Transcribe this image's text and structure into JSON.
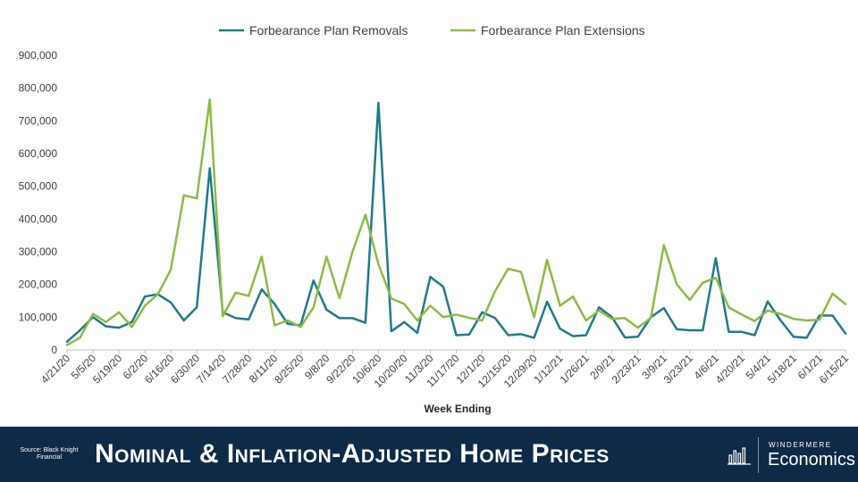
{
  "chart_data": {
    "type": "line",
    "title": "",
    "xlabel": "Week Ending",
    "ylabel": "",
    "ylim": [
      0,
      900000
    ],
    "yticks": [
      0,
      100000,
      200000,
      300000,
      400000,
      500000,
      600000,
      700000,
      800000,
      900000
    ],
    "ytick_labels": [
      "0",
      "100,000",
      "200,000",
      "300,000",
      "400,000",
      "500,000",
      "600,000",
      "700,000",
      "800,000",
      "900,000"
    ],
    "legend_position": "top-center",
    "grid": false,
    "x": [
      "4/21/20",
      "4/28/20",
      "5/5/20",
      "5/12/20",
      "5/19/20",
      "5/26/20",
      "6/2/20",
      "6/9/20",
      "6/16/20",
      "6/23/20",
      "6/30/20",
      "7/7/20",
      "7/14/20",
      "7/21/20",
      "7/28/20",
      "8/4/20",
      "8/11/20",
      "8/18/20",
      "8/25/20",
      "9/1/20",
      "9/8/20",
      "9/15/20",
      "9/22/20",
      "9/29/20",
      "10/6/20",
      "10/13/20",
      "10/20/20",
      "10/27/20",
      "11/3/20",
      "11/10/20",
      "11/17/20",
      "11/24/20",
      "12/1/20",
      "12/8/20",
      "12/15/20",
      "12/22/20",
      "12/29/20",
      "1/5/21",
      "1/12/21",
      "1/19/21",
      "1/26/21",
      "2/2/21",
      "2/9/21",
      "2/16/21",
      "2/23/21",
      "3/2/21",
      "3/9/21",
      "3/16/21",
      "3/23/21",
      "3/30/21",
      "4/6/21",
      "4/13/21",
      "4/20/21",
      "4/27/21",
      "5/4/21",
      "5/11/21",
      "5/18/21",
      "5/25/21",
      "6/1/21",
      "6/8/21",
      "6/15/21"
    ],
    "xtick_labels": [
      "4/21/20",
      "5/5/20",
      "5/19/20",
      "6/2/20",
      "6/16/20",
      "6/30/20",
      "7/14/20",
      "7/28/20",
      "8/11/20",
      "8/25/20",
      "9/8/20",
      "9/22/20",
      "10/6/20",
      "10/20/20",
      "11/3/20",
      "11/17/20",
      "12/1/20",
      "12/15/20",
      "12/29/20",
      "1/12/21",
      "1/26/21",
      "2/9/21",
      "2/23/21",
      "3/9/21",
      "3/23/21",
      "4/6/21",
      "4/20/21",
      "5/4/21",
      "5/18/21",
      "6/1/21",
      "6/15/21"
    ],
    "series": [
      {
        "name": "Forbearance Plan Removals",
        "color": "#1f7a8c",
        "values": [
          25000,
          60000,
          100000,
          72000,
          68000,
          85000,
          163000,
          170000,
          145000,
          90000,
          130000,
          555000,
          115000,
          97000,
          93000,
          185000,
          140000,
          80000,
          75000,
          212000,
          123000,
          97000,
          97000,
          83000,
          755000,
          57000,
          85000,
          52000,
          223000,
          193000,
          45000,
          47000,
          115000,
          97000,
          45000,
          48000,
          37000,
          147000,
          65000,
          42000,
          45000,
          130000,
          100000,
          38000,
          40000,
          100000,
          128000,
          63000,
          60000,
          60000,
          280000,
          55000,
          55000,
          45000,
          148000,
          90000,
          40000,
          37000,
          105000,
          105000,
          50000
        ]
      },
      {
        "name": "Forbearance Plan Extensions",
        "color": "#8dbb43",
        "values": [
          15000,
          37000,
          110000,
          85000,
          115000,
          70000,
          135000,
          170000,
          245000,
          472000,
          463000,
          765000,
          103000,
          175000,
          165000,
          285000,
          75000,
          90000,
          70000,
          130000,
          285000,
          158000,
          300000,
          413000,
          262000,
          157000,
          140000,
          90000,
          135000,
          100000,
          108000,
          98000,
          90000,
          180000,
          248000,
          238000,
          100000,
          275000,
          135000,
          163000,
          90000,
          120000,
          95000,
          97000,
          68000,
          98000,
          320000,
          200000,
          153000,
          205000,
          220000,
          130000,
          108000,
          88000,
          120000,
          110000,
          95000,
          90000,
          92000,
          172000,
          140000
        ]
      }
    ]
  },
  "footer": {
    "source": "Source: Black Knight Financial",
    "title": "Nominal & Inflation-Adjusted Home Prices",
    "brand_small": "WINDERMERE",
    "brand_big": "Economics"
  }
}
